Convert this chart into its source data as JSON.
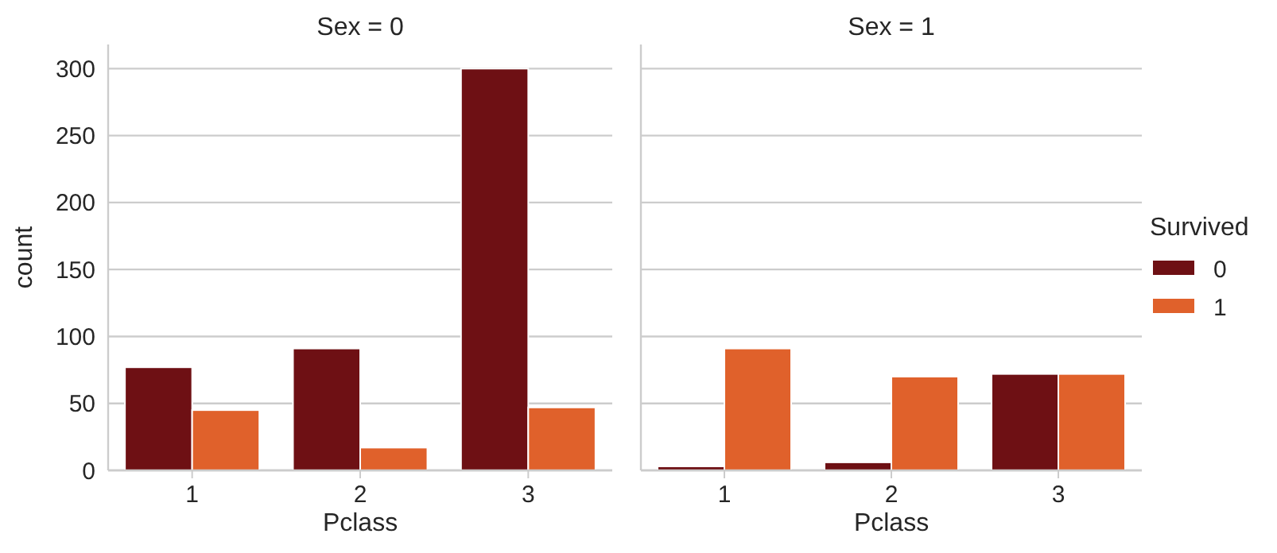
{
  "chart_data": [
    {
      "type": "bar",
      "title": "Sex = 0",
      "xlabel": "Pclass",
      "ylabel": "count",
      "categories": [
        "1",
        "2",
        "3"
      ],
      "series": [
        {
          "color": "#6e1014",
          "values": [
            77,
            91,
            300
          ]
        },
        {
          "color": "#e0612b",
          "values": [
            45,
            17,
            47
          ]
        }
      ],
      "ylim": [
        0,
        318
      ],
      "yticks": [
        0,
        50,
        100,
        150,
        200,
        250,
        300
      ],
      "grid": "y"
    },
    {
      "type": "bar",
      "title": "Sex = 1",
      "xlabel": "Pclass",
      "categories": [
        "1",
        "2",
        "3"
      ],
      "series": [
        {
          "name": "0",
          "color": "#6e1014",
          "values": [
            3,
            6,
            72
          ]
        },
        {
          "name": "1",
          "color": "#e0612b",
          "values": [
            91,
            70,
            72
          ]
        }
      ],
      "ylim": [
        0,
        318
      ],
      "yticks": [
        0,
        50,
        100,
        150,
        200,
        250,
        300
      ],
      "grid": "y",
      "tick_labels": "x",
      "legend": "right",
      "legend_title": "Survived"
    }
  ]
}
